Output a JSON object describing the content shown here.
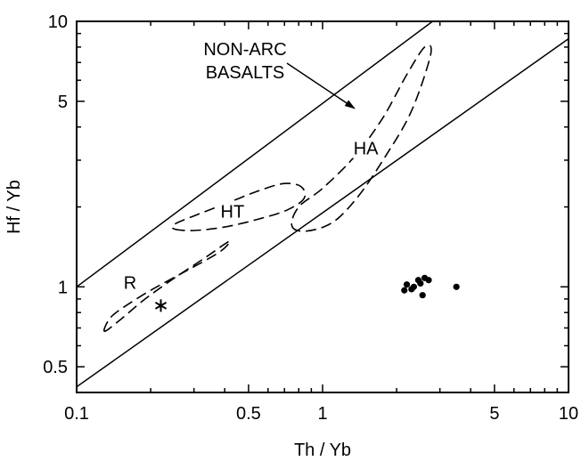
{
  "chart_data": {
    "type": "scatter",
    "title": "",
    "xlabel": "Th / Yb",
    "ylabel": "Hf / Yb",
    "xscale": "log",
    "yscale": "log",
    "xlim": [
      0.1,
      10
    ],
    "ylim": [
      0.4,
      10
    ],
    "xticks": [
      {
        "value": 0.1,
        "label": "0.1"
      },
      {
        "value": 0.5,
        "label": "0.5"
      },
      {
        "value": 1,
        "label": "1"
      },
      {
        "value": 5,
        "label": "5"
      },
      {
        "value": 10,
        "label": "10"
      }
    ],
    "yticks": [
      {
        "value": 0.5,
        "label": "0.5"
      },
      {
        "value": 1,
        "label": "1"
      },
      {
        "value": 5,
        "label": "5"
      },
      {
        "value": 10,
        "label": "10"
      }
    ],
    "grid": false,
    "boundary_lines": [
      {
        "x": [
          0.1,
          2.8
        ],
        "y": [
          1.0,
          10
        ]
      },
      {
        "x": [
          0.1,
          10
        ],
        "y": [
          0.42,
          8.6
        ]
      }
    ],
    "fields": [
      {
        "label": "R",
        "label_at": [
          0.165,
          1.0
        ],
        "x": [
          0.13,
          0.135,
          0.15,
          0.2,
          0.28,
          0.38,
          0.42,
          0.4,
          0.33,
          0.25,
          0.19,
          0.15
        ],
        "y": [
          0.68,
          0.75,
          0.82,
          0.97,
          1.15,
          1.35,
          1.48,
          1.45,
          1.28,
          1.08,
          0.9,
          0.75
        ]
      },
      {
        "label": "HT",
        "label_at": [
          0.43,
          1.85
        ],
        "x": [
          0.25,
          0.3,
          0.4,
          0.55,
          0.72,
          0.84,
          0.82,
          0.7,
          0.55,
          0.4,
          0.3,
          0.25
        ],
        "y": [
          1.65,
          1.63,
          1.68,
          1.8,
          1.95,
          2.15,
          2.38,
          2.45,
          2.3,
          2.05,
          1.85,
          1.72
        ]
      },
      {
        "label": "HA",
        "label_at": [
          1.5,
          3.2
        ],
        "x": [
          0.75,
          0.85,
          1.1,
          1.4,
          1.8,
          2.3,
          2.75,
          2.6,
          2.2,
          1.75,
          1.35,
          1.0,
          0.8
        ],
        "y": [
          1.7,
          1.62,
          1.75,
          2.2,
          3.1,
          4.6,
          7.5,
          8.0,
          6.3,
          4.3,
          3.1,
          2.35,
          2.0
        ]
      }
    ],
    "series": [
      {
        "marker": "dot",
        "x": [
          2.15,
          2.2,
          2.3,
          2.35,
          2.45,
          2.5,
          2.6,
          2.7,
          2.55,
          3.5
        ],
        "y": [
          0.97,
          1.02,
          0.98,
          1.0,
          1.06,
          1.03,
          1.08,
          1.06,
          0.93,
          1.0
        ]
      },
      {
        "marker": "asterisk",
        "x": [
          0.22
        ],
        "y": [
          0.85
        ]
      }
    ],
    "annotations": [
      {
        "text_lines": [
          "NON-ARC",
          "BASALTS"
        ],
        "arrow_to": [
          1.35,
          4.7
        ]
      }
    ]
  }
}
